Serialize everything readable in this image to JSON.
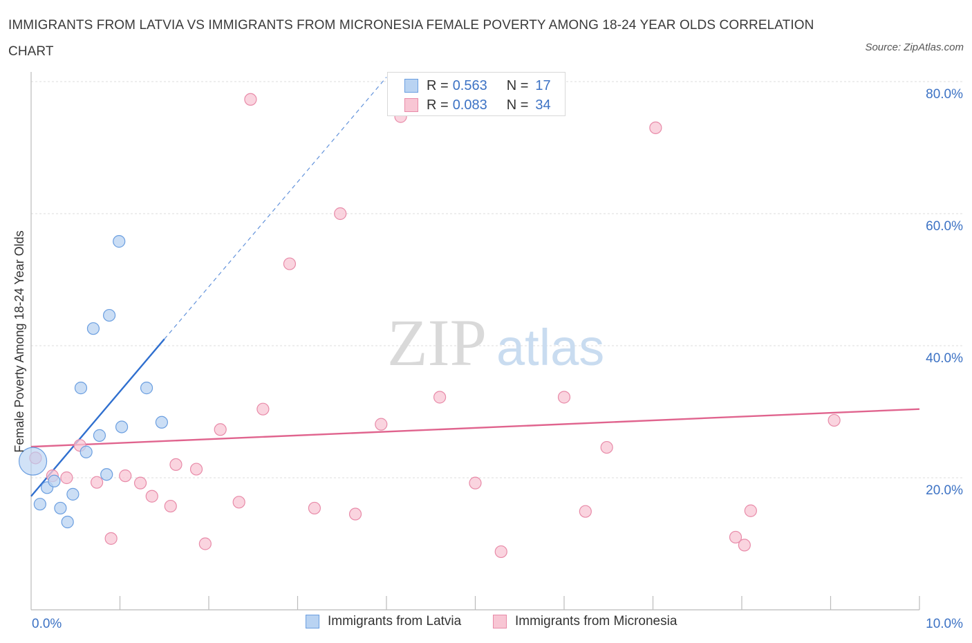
{
  "header": {
    "title": "IMMIGRANTS FROM LATVIA VS IMMIGRANTS FROM MICRONESIA FEMALE POVERTY AMONG 18-24 YEAR OLDS CORRELATION CHART",
    "source": "Source: ZipAtlas.com"
  },
  "watermark": {
    "zip": "ZIP",
    "atlas": "atlas"
  },
  "legend": {
    "r_label": "R =",
    "n_label": "N =",
    "series": [
      {
        "name": "Immigrants from Latvia",
        "r": "0.563",
        "n": "17",
        "fill": "#b9d3f2",
        "stroke": "#6a9ee0"
      },
      {
        "name": "Immigrants from Micronesia",
        "r": "0.083",
        "n": "34",
        "fill": "#f8c6d4",
        "stroke": "#e88aa8"
      }
    ]
  },
  "colors": {
    "latvia_line": "#2f6fcf",
    "micronesia_line": "#e0648e",
    "axis_tick_text": "#3c72c4",
    "grid": "#dcdcdc",
    "axis": "#bbbbbb"
  },
  "chart_data": {
    "type": "scatter",
    "title": "IMMIGRANTS FROM LATVIA VS IMMIGRANTS FROM MICRONESIA FEMALE POVERTY AMONG 18-24 YEAR OLDS CORRELATION CHART",
    "xlabel": "",
    "ylabel": "Female Poverty Among 18-24 Year Olds",
    "xlim": [
      0,
      10
    ],
    "ylim": [
      0,
      80
    ],
    "x_tick_labels": [
      "0.0%",
      "10.0%"
    ],
    "x_tick_values": [
      0,
      10
    ],
    "y_ticks": [
      {
        "value": 20,
        "label": "20.0%"
      },
      {
        "value": 40,
        "label": "40.0%"
      },
      {
        "value": 60,
        "label": "60.0%"
      },
      {
        "value": 80,
        "label": "80.0%"
      }
    ],
    "legend_position": "top-center",
    "series": [
      {
        "name": "Immigrants from Latvia",
        "points": [
          {
            "x": 0.02,
            "y": 22.5,
            "large": true
          },
          {
            "x": 0.1,
            "y": 16.0
          },
          {
            "x": 0.18,
            "y": 18.5
          },
          {
            "x": 0.26,
            "y": 19.5
          },
          {
            "x": 0.33,
            "y": 15.4
          },
          {
            "x": 0.41,
            "y": 13.3
          },
          {
            "x": 0.47,
            "y": 17.5
          },
          {
            "x": 0.56,
            "y": 33.6
          },
          {
            "x": 0.62,
            "y": 23.9
          },
          {
            "x": 0.7,
            "y": 42.6
          },
          {
            "x": 0.77,
            "y": 26.4
          },
          {
            "x": 0.85,
            "y": 20.5
          },
          {
            "x": 0.88,
            "y": 44.6
          },
          {
            "x": 0.99,
            "y": 55.8
          },
          {
            "x": 1.02,
            "y": 27.7
          },
          {
            "x": 1.3,
            "y": 33.6
          },
          {
            "x": 1.47,
            "y": 28.4
          }
        ],
        "trend": {
          "x0": 0.0,
          "y0": 17.2,
          "x1": 1.5,
          "y1": 41.0,
          "dash_to_x": 4.0
        }
      },
      {
        "name": "Immigrants from Micronesia",
        "points": [
          {
            "x": 0.05,
            "y": 23.0
          },
          {
            "x": 0.24,
            "y": 20.3
          },
          {
            "x": 0.4,
            "y": 20.0
          },
          {
            "x": 0.55,
            "y": 24.9
          },
          {
            "x": 0.74,
            "y": 19.3
          },
          {
            "x": 0.9,
            "y": 10.8
          },
          {
            "x": 1.06,
            "y": 20.3
          },
          {
            "x": 1.23,
            "y": 19.2
          },
          {
            "x": 1.36,
            "y": 17.2
          },
          {
            "x": 1.57,
            "y": 15.7
          },
          {
            "x": 1.63,
            "y": 22.0
          },
          {
            "x": 1.86,
            "y": 21.3
          },
          {
            "x": 1.96,
            "y": 10.0
          },
          {
            "x": 2.13,
            "y": 27.3
          },
          {
            "x": 2.34,
            "y": 16.3
          },
          {
            "x": 2.47,
            "y": 77.3
          },
          {
            "x": 2.61,
            "y": 30.4
          },
          {
            "x": 2.91,
            "y": 52.4
          },
          {
            "x": 3.19,
            "y": 15.4
          },
          {
            "x": 3.48,
            "y": 60.0
          },
          {
            "x": 3.65,
            "y": 14.5
          },
          {
            "x": 3.94,
            "y": 28.1
          },
          {
            "x": 4.16,
            "y": 74.7
          },
          {
            "x": 4.6,
            "y": 32.2
          },
          {
            "x": 5.0,
            "y": 19.2
          },
          {
            "x": 5.29,
            "y": 8.8
          },
          {
            "x": 6.0,
            "y": 32.2
          },
          {
            "x": 6.24,
            "y": 14.9
          },
          {
            "x": 6.48,
            "y": 24.6
          },
          {
            "x": 7.03,
            "y": 73.0
          },
          {
            "x": 7.93,
            "y": 11.0
          },
          {
            "x": 8.03,
            "y": 9.8
          },
          {
            "x": 8.1,
            "y": 15.0
          },
          {
            "x": 9.04,
            "y": 28.7
          }
        ],
        "trend": {
          "x0": 0.0,
          "y0": 24.7,
          "x1": 10.0,
          "y1": 30.4
        }
      }
    ]
  }
}
